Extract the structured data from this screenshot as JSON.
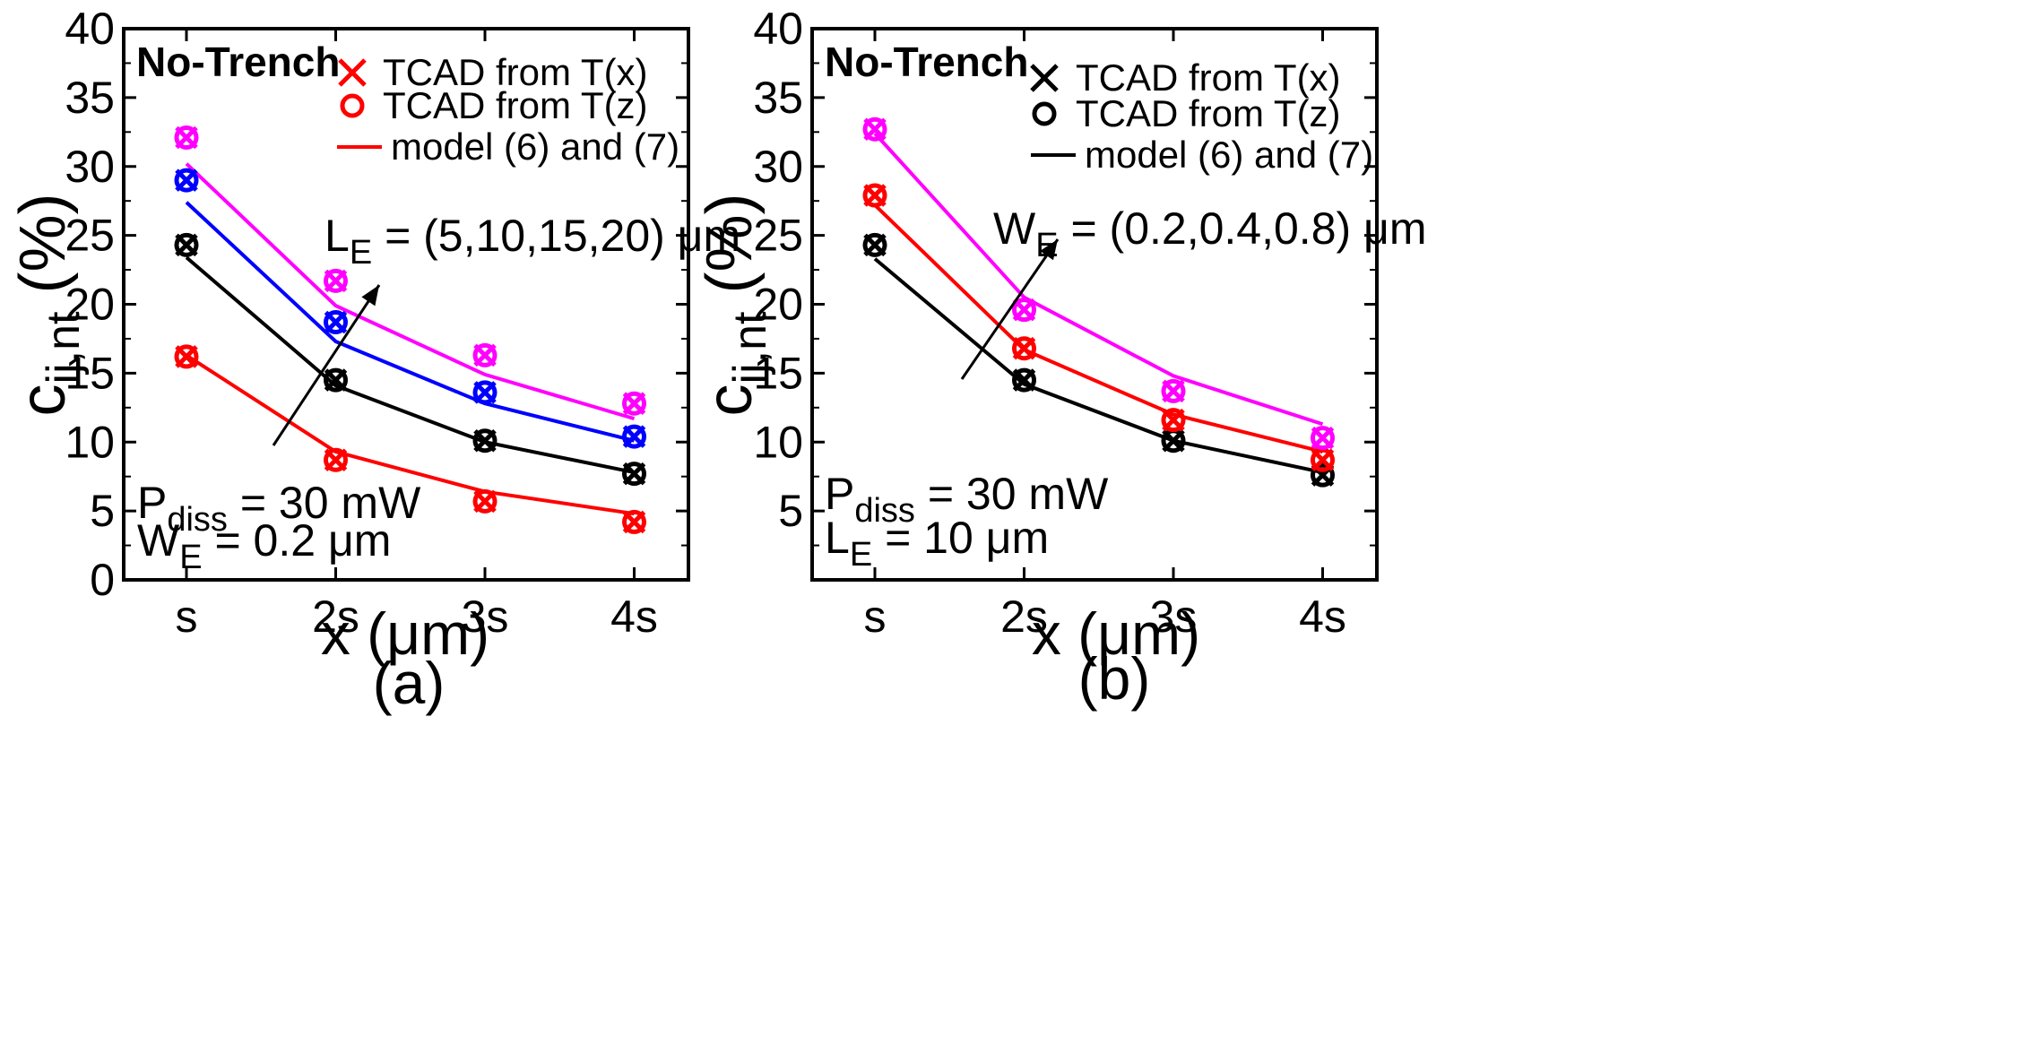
{
  "chart_data": [
    {
      "panel_label": "(a)",
      "type": "line",
      "corner_label": "No-Trench",
      "xlabel": "x (μm)",
      "ylabel": {
        "main": "c",
        "sub": "ij,nt",
        "unit": "(%)"
      },
      "ylim": [
        0,
        40
      ],
      "yticks": [
        "0",
        "5",
        "10",
        "15",
        "20",
        "25",
        "30",
        "35",
        "40"
      ],
      "categories": [
        "s",
        "2s",
        "3s",
        "4s"
      ],
      "legend": [
        {
          "symbol": "x",
          "label": "TCAD from T(x)"
        },
        {
          "symbol": "o",
          "label": "TCAD from T(z)"
        },
        {
          "symbol": "line",
          "label": "model (6) and (7)"
        }
      ],
      "legend_color": "#ff0000",
      "param_annotation": {
        "main": "L",
        "sub": "E",
        "rest": " = (5,10,15,20) μm"
      },
      "conditions": [
        {
          "main": "P",
          "sub": "diss",
          "rest": " = 30 mW"
        },
        {
          "main": "W",
          "sub": "E",
          "rest": " = 0.2 μm"
        }
      ],
      "series": [
        {
          "name": "L_E = 5 μm",
          "color": "#ff0000",
          "tcad": [
            16.2,
            8.7,
            5.7,
            4.2
          ],
          "model": [
            16.3,
            9.3,
            6.4,
            4.8
          ]
        },
        {
          "name": "L_E = 10 μm",
          "color": "#000000",
          "tcad": [
            24.3,
            14.5,
            10.1,
            7.7
          ],
          "model": [
            23.4,
            14.1,
            10.0,
            7.8
          ]
        },
        {
          "name": "L_E = 15 μm",
          "color": "#0000ff",
          "tcad": [
            29.0,
            18.7,
            13.6,
            10.4
          ],
          "model": [
            27.4,
            17.3,
            12.8,
            10.1
          ]
        },
        {
          "name": "L_E = 20 μm",
          "color": "#ff00ff",
          "tcad": [
            32.1,
            21.7,
            16.3,
            12.8
          ],
          "model": [
            30.2,
            19.9,
            14.9,
            11.7
          ]
        }
      ]
    },
    {
      "panel_label": "(b)",
      "type": "line",
      "corner_label": "No-Trench",
      "xlabel": "x (μm)",
      "ylabel": {
        "main": "c",
        "sub": "ij,nt",
        "unit": "(%)"
      },
      "ylim": [
        0,
        40
      ],
      "yticks": [
        "5",
        "10",
        "15",
        "20",
        "25",
        "30",
        "35",
        "40"
      ],
      "categories": [
        "s",
        "2s",
        "3s",
        "4s"
      ],
      "legend": [
        {
          "symbol": "x",
          "label": "TCAD from T(x)"
        },
        {
          "symbol": "o",
          "label": "TCAD from T(z)"
        },
        {
          "symbol": "line",
          "label": "model (6) and (7)"
        }
      ],
      "legend_color": "#000000",
      "param_annotation": {
        "main": "W",
        "sub": "E",
        "rest": " = (0.2,0.4,0.8) μm"
      },
      "conditions": [
        {
          "main": "P",
          "sub": "diss",
          "rest": " = 30 mW"
        },
        {
          "main": "L",
          "sub": "E",
          "rest": " = 10 μm"
        }
      ],
      "series": [
        {
          "name": "W_E = 0.2 μm",
          "color": "#000000",
          "tcad": [
            24.3,
            14.5,
            10.1,
            7.6
          ],
          "model": [
            23.3,
            14.2,
            10.1,
            7.8
          ]
        },
        {
          "name": "W_E = 0.4 μm",
          "color": "#ff0000",
          "tcad": [
            27.9,
            16.8,
            11.6,
            8.7
          ],
          "model": [
            27.2,
            16.7,
            12.0,
            9.3
          ]
        },
        {
          "name": "W_E = 0.8 μm",
          "color": "#ff00ff",
          "tcad": [
            32.7,
            19.6,
            13.7,
            10.3
          ],
          "model": [
            32.4,
            20.5,
            14.8,
            11.3
          ]
        }
      ]
    }
  ]
}
